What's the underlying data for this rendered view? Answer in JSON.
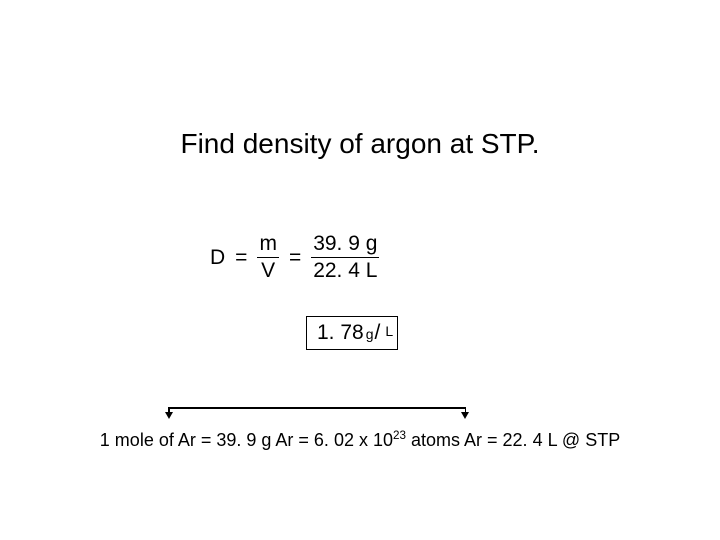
{
  "title": "Find density of argon at STP.",
  "equation": {
    "lhs": "D",
    "eq1": "=",
    "frac1": {
      "num": "m",
      "den": "V"
    },
    "eq2": "=",
    "frac2": {
      "num": "39. 9 g",
      "den": "22. 4 L"
    }
  },
  "answer": {
    "value": "1. 78",
    "unit_top": "g",
    "slash": "/",
    "unit_bot": "L"
  },
  "bottom": {
    "p1": "1 mole of Ar  =  39. 9 g Ar  =  6. 02 x 10",
    "exp": "23",
    "p2": " atoms Ar  =  22. 4 L @ STP"
  },
  "style": {
    "text_color": "#000000",
    "background": "#ffffff",
    "title_fontsize": 28,
    "body_fontsize": 21,
    "bottom_fontsize": 18
  }
}
